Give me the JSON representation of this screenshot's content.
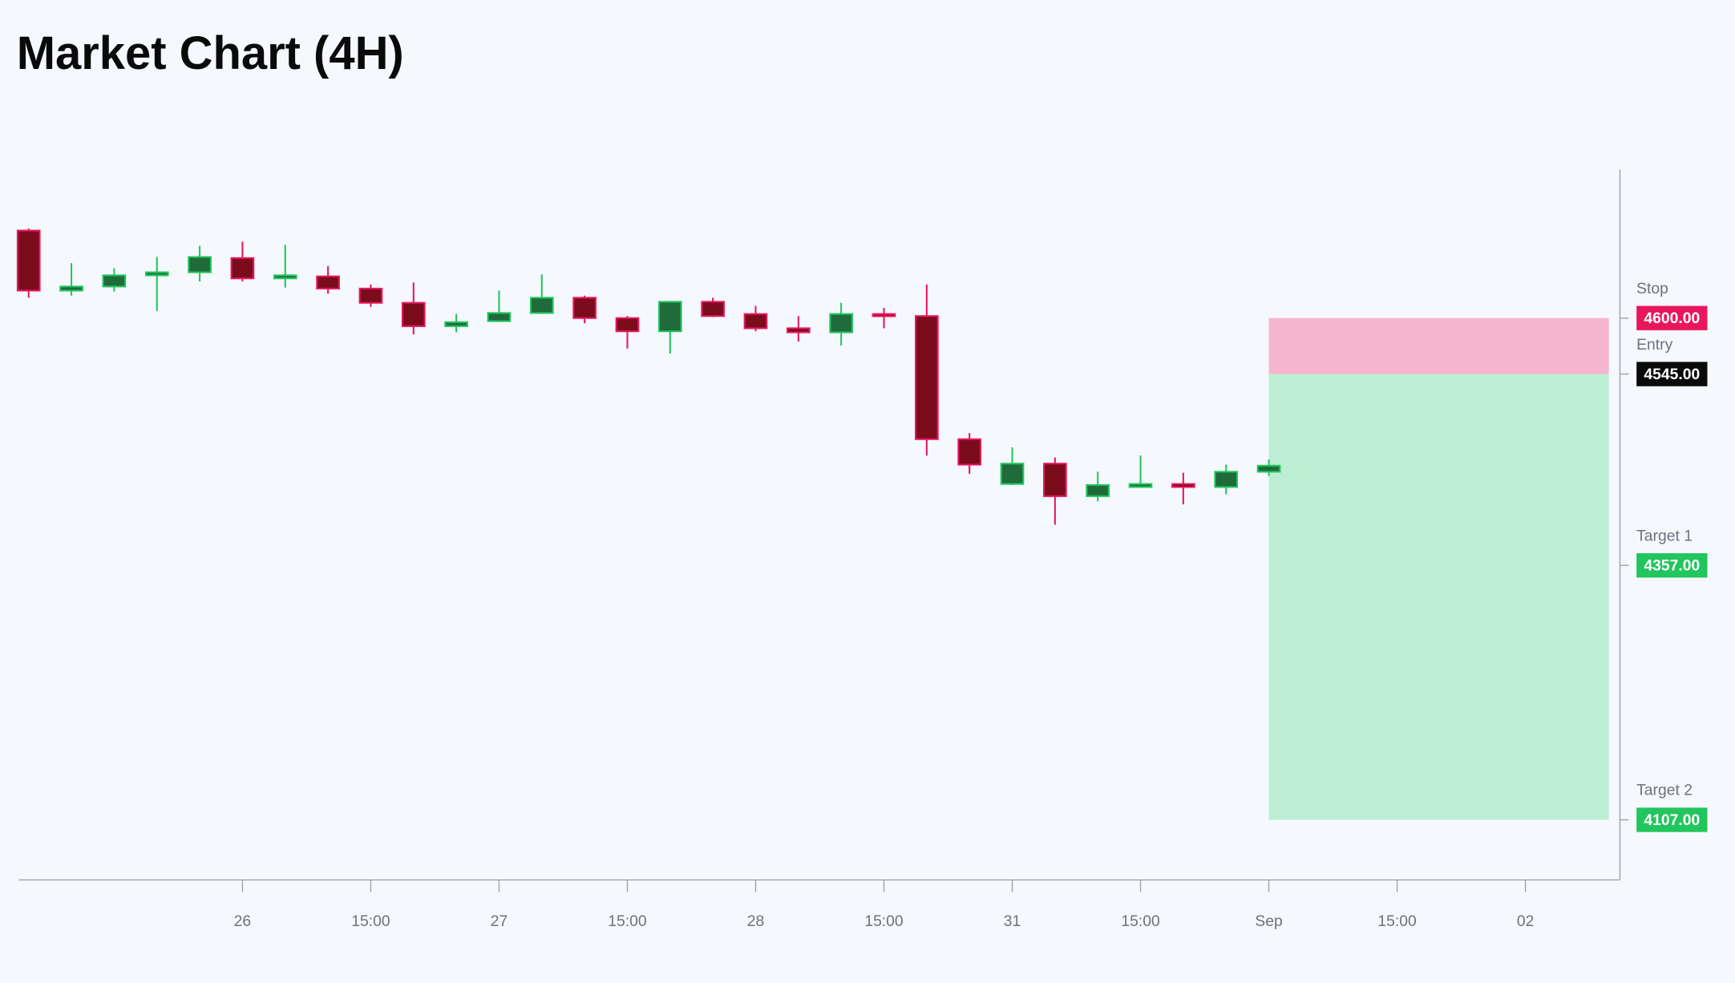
{
  "chart_data": {
    "type": "candlestick",
    "title": "Market Chart (4H)",
    "candles": {
      "x": [
        0,
        1,
        2,
        3,
        4,
        5,
        6,
        7,
        8,
        9,
        10,
        11,
        12,
        13,
        14,
        15,
        16,
        17,
        18,
        19,
        20,
        21,
        22,
        23,
        24,
        25,
        26,
        27,
        28,
        29
      ],
      "open": [
        4686,
        4627,
        4631,
        4642,
        4645,
        4659,
        4639,
        4641,
        4629,
        4615,
        4592,
        4597,
        4605,
        4620,
        4600,
        4587,
        4616,
        4604,
        4590,
        4586,
        4604,
        4602,
        4481,
        4437,
        4457,
        4425,
        4434,
        4437,
        4434,
        4449
      ],
      "high": [
        4688,
        4654,
        4649,
        4660,
        4671,
        4675,
        4672,
        4651,
        4633,
        4635,
        4604,
        4627,
        4643,
        4622,
        4602,
        4616,
        4620,
        4612,
        4602,
        4615,
        4610,
        4633,
        4487,
        4473,
        4463,
        4449,
        4465,
        4448,
        4456,
        4461
      ],
      "low": [
        4620,
        4622,
        4626,
        4607,
        4636,
        4636,
        4630,
        4624,
        4611,
        4584,
        4586,
        4597,
        4604,
        4595,
        4570,
        4565,
        4601,
        4587,
        4577,
        4573,
        4590,
        4465,
        4447,
        4436,
        4397,
        4420,
        4434,
        4417,
        4427,
        4445
      ],
      "close": [
        4627,
        4631,
        4642,
        4645,
        4660,
        4639,
        4642,
        4629,
        4615,
        4592,
        4596,
        4605,
        4620,
        4600,
        4587,
        4616,
        4602,
        4590,
        4586,
        4604,
        4602,
        4481,
        4456,
        4457,
        4425,
        4436,
        4437,
        4434,
        4449,
        4455
      ]
    },
    "up_color": "#1f6b3b",
    "up_edge": "#22c55e",
    "down_color": "#7a0c1c",
    "down_edge": "#e8175d",
    "xlim": [
      -0.23,
      37.21
    ],
    "ylim": [
      4048,
      4746
    ],
    "xticks": [
      {
        "value": 5,
        "label": "26"
      },
      {
        "value": 8,
        "label": "15:00"
      },
      {
        "value": 11,
        "label": "27"
      },
      {
        "value": 14,
        "label": "15:00"
      },
      {
        "value": 17,
        "label": "28"
      },
      {
        "value": 20,
        "label": "15:00"
      },
      {
        "value": 23,
        "label": "31"
      },
      {
        "value": 26,
        "label": "15:00"
      },
      {
        "value": 29,
        "label": "Sep"
      },
      {
        "value": 32,
        "label": "15:00"
      },
      {
        "value": 35,
        "label": "02"
      }
    ],
    "levels": [
      {
        "name": "Stop",
        "value": 4600,
        "label": "4600.00",
        "color": "#e8175d"
      },
      {
        "name": "Entry",
        "value": 4545,
        "label": "4545.00",
        "color": "#0a0a0a"
      },
      {
        "name": "Target 1",
        "value": 4357,
        "label": "4357.00",
        "color": "#22c55e"
      },
      {
        "name": "Target 2",
        "value": 4107,
        "label": "4107.00",
        "color": "#22c55e"
      }
    ],
    "risk_color": "#f5b5cc",
    "reward_color": "#bdeed4"
  }
}
